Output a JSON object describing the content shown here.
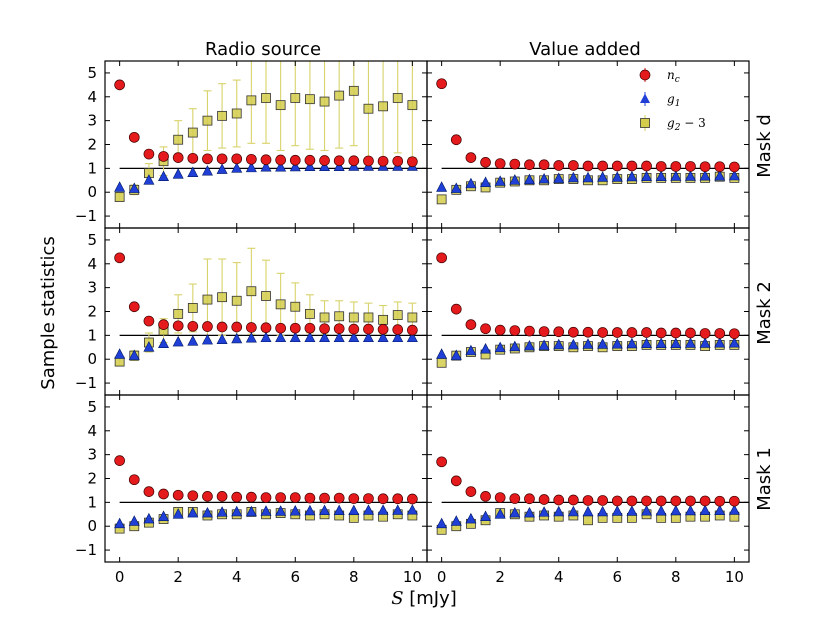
{
  "figure": {
    "ylabel": "Sample statistics",
    "xlabel_symbol": "S",
    "xlabel_unit": " [mJy]"
  },
  "colors": {
    "n_c": "#e41a1c",
    "g1": "#1f3fd6",
    "g2m3_fill": "#d4cd4c",
    "g2m3_err": "#d8d36a",
    "nc_err": "#e41a1c",
    "g1_err": "#1f3fd6",
    "reference_line": "#000000"
  },
  "chart_data": {
    "type": "scatter",
    "grid": false,
    "columns": [
      "Radio source",
      "Value added"
    ],
    "rows": [
      "Mask d",
      "Mask 2",
      "Mask 1"
    ],
    "x": [
      0,
      0.5,
      1,
      1.5,
      2,
      2.5,
      3,
      3.5,
      4,
      4.5,
      5,
      5.5,
      6,
      6.5,
      7,
      7.5,
      8,
      8.5,
      9,
      9.5,
      10
    ],
    "xlim": [
      -0.5,
      10.5
    ],
    "ylim": [
      -1.5,
      5.5
    ],
    "xticks": [
      0,
      2,
      4,
      6,
      8,
      10
    ],
    "yticks": [
      -1,
      0,
      1,
      2,
      3,
      4,
      5
    ],
    "reference_line": {
      "y": 1,
      "x_start": 0
    },
    "legend": {
      "position": "top-right",
      "panel": [
        0,
        1
      ],
      "entries": [
        {
          "key": "n_c",
          "base": "n",
          "sub": "c",
          "suffix": ""
        },
        {
          "key": "g1",
          "base": "g",
          "sub": "1",
          "suffix": ""
        },
        {
          "key": "g2m3",
          "base": "g",
          "sub": "2",
          "suffix": " − 3"
        }
      ]
    },
    "panels": [
      {
        "row": 0,
        "col": 0,
        "series": {
          "n_c": [
            4.5,
            2.3,
            1.6,
            1.5,
            1.45,
            1.42,
            1.4,
            1.4,
            1.4,
            1.38,
            1.36,
            1.35,
            1.34,
            1.34,
            1.33,
            1.32,
            1.32,
            1.31,
            1.3,
            1.3,
            1.28
          ],
          "g1": [
            0.2,
            0.15,
            0.5,
            0.65,
            0.75,
            0.82,
            0.88,
            0.95,
            1.0,
            1.02,
            1.05,
            1.05,
            1.06,
            1.07,
            1.07,
            1.07,
            1.08,
            1.08,
            1.08,
            1.08,
            1.08
          ],
          "g2m3": [
            -0.2,
            0.1,
            0.8,
            1.3,
            2.2,
            2.5,
            3.0,
            3.2,
            3.3,
            3.85,
            3.95,
            3.65,
            3.95,
            3.9,
            3.8,
            4.05,
            4.25,
            3.5,
            3.6,
            3.95,
            3.65
          ],
          "g2m3_err": [
            0.15,
            0.2,
            0.4,
            0.6,
            0.8,
            1.0,
            1.25,
            1.35,
            1.4,
            1.8,
            1.9,
            1.9,
            2.0,
            2.1,
            2.05,
            2.2,
            2.3,
            2.1,
            2.15,
            2.3,
            2.2
          ]
        }
      },
      {
        "row": 0,
        "col": 1,
        "series": {
          "n_c": [
            4.55,
            2.2,
            1.45,
            1.25,
            1.2,
            1.18,
            1.15,
            1.15,
            1.12,
            1.12,
            1.1,
            1.1,
            1.1,
            1.1,
            1.1,
            1.08,
            1.08,
            1.08,
            1.07,
            1.07,
            1.06
          ],
          "g1": [
            0.2,
            0.15,
            0.35,
            0.4,
            0.45,
            0.5,
            0.52,
            0.55,
            0.57,
            0.6,
            0.6,
            0.62,
            0.62,
            0.64,
            0.65,
            0.65,
            0.66,
            0.66,
            0.67,
            0.67,
            0.68
          ],
          "g2m3": [
            -0.3,
            0.1,
            0.25,
            0.2,
            0.4,
            0.45,
            0.5,
            0.5,
            0.55,
            0.55,
            0.5,
            0.5,
            0.55,
            0.55,
            0.6,
            0.6,
            0.6,
            0.6,
            0.6,
            0.65,
            0.6
          ],
          "g2m3_err": [
            0.05,
            0.05,
            0.06,
            0.06,
            0.07,
            0.07,
            0.08,
            0.08,
            0.08,
            0.08,
            0.08,
            0.08,
            0.08,
            0.08,
            0.08,
            0.08,
            0.08,
            0.08,
            0.08,
            0.08,
            0.08
          ]
        }
      },
      {
        "row": 1,
        "col": 0,
        "series": {
          "n_c": [
            4.25,
            2.2,
            1.6,
            1.45,
            1.4,
            1.38,
            1.37,
            1.35,
            1.35,
            1.33,
            1.32,
            1.3,
            1.3,
            1.3,
            1.28,
            1.28,
            1.26,
            1.26,
            1.25,
            1.24,
            1.22
          ],
          "g1": [
            0.2,
            0.15,
            0.5,
            0.65,
            0.72,
            0.75,
            0.8,
            0.82,
            0.85,
            0.88,
            0.9,
            0.9,
            0.9,
            0.9,
            0.9,
            0.9,
            0.9,
            0.9,
            0.9,
            0.9,
            0.9
          ],
          "g2m3": [
            -0.1,
            0.15,
            0.7,
            1.2,
            1.9,
            2.15,
            2.5,
            2.6,
            2.45,
            2.85,
            2.65,
            2.3,
            2.2,
            1.9,
            1.75,
            1.8,
            1.75,
            1.75,
            1.65,
            1.85,
            1.75
          ],
          "g2m3_err": [
            0.15,
            0.2,
            0.4,
            0.5,
            0.8,
            1.0,
            1.7,
            1.6,
            1.6,
            1.8,
            1.5,
            1.3,
            1.0,
            0.8,
            0.7,
            0.65,
            0.65,
            0.6,
            0.6,
            0.55,
            0.6
          ]
        }
      },
      {
        "row": 1,
        "col": 1,
        "series": {
          "n_c": [
            4.25,
            2.1,
            1.45,
            1.28,
            1.22,
            1.2,
            1.18,
            1.16,
            1.15,
            1.13,
            1.13,
            1.12,
            1.12,
            1.12,
            1.12,
            1.1,
            1.1,
            1.1,
            1.08,
            1.08,
            1.07
          ],
          "g1": [
            0.2,
            0.15,
            0.35,
            0.42,
            0.48,
            0.52,
            0.55,
            0.57,
            0.6,
            0.6,
            0.62,
            0.62,
            0.63,
            0.64,
            0.65,
            0.65,
            0.65,
            0.66,
            0.66,
            0.67,
            0.67
          ],
          "g2m3": [
            -0.15,
            0.15,
            0.3,
            0.2,
            0.4,
            0.45,
            0.5,
            0.55,
            0.55,
            0.5,
            0.55,
            0.5,
            0.55,
            0.55,
            0.6,
            0.6,
            0.6,
            0.6,
            0.55,
            0.6,
            0.6
          ],
          "g2m3_err": [
            0.05,
            0.05,
            0.06,
            0.06,
            0.07,
            0.07,
            0.08,
            0.08,
            0.08,
            0.08,
            0.08,
            0.08,
            0.08,
            0.08,
            0.08,
            0.08,
            0.08,
            0.08,
            0.08,
            0.08,
            0.08
          ]
        }
      },
      {
        "row": 2,
        "col": 0,
        "series": {
          "n_c": [
            2.75,
            1.95,
            1.45,
            1.35,
            1.3,
            1.28,
            1.25,
            1.25,
            1.22,
            1.22,
            1.2,
            1.2,
            1.2,
            1.18,
            1.18,
            1.18,
            1.16,
            1.16,
            1.15,
            1.15,
            1.14
          ],
          "g1": [
            0.1,
            0.2,
            0.3,
            0.4,
            0.5,
            0.55,
            0.55,
            0.58,
            0.6,
            0.6,
            0.62,
            0.62,
            0.63,
            0.64,
            0.65,
            0.65,
            0.65,
            0.66,
            0.66,
            0.66,
            0.67
          ],
          "g2m3": [
            -0.1,
            0.0,
            0.15,
            0.3,
            0.6,
            0.6,
            0.45,
            0.5,
            0.5,
            0.6,
            0.5,
            0.55,
            0.5,
            0.45,
            0.5,
            0.45,
            0.35,
            0.45,
            0.4,
            0.5,
            0.45
          ],
          "g2m3_err": [
            0.08,
            0.08,
            0.1,
            0.1,
            0.1,
            0.1,
            0.1,
            0.1,
            0.1,
            0.1,
            0.1,
            0.1,
            0.1,
            0.1,
            0.1,
            0.1,
            0.1,
            0.1,
            0.1,
            0.1,
            0.1
          ]
        }
      },
      {
        "row": 2,
        "col": 1,
        "series": {
          "n_c": [
            2.7,
            1.9,
            1.45,
            1.25,
            1.2,
            1.16,
            1.15,
            1.12,
            1.1,
            1.1,
            1.08,
            1.08,
            1.06,
            1.06,
            1.06,
            1.06,
            1.06,
            1.06,
            1.06,
            1.05,
            1.05
          ],
          "g1": [
            0.1,
            0.2,
            0.3,
            0.4,
            0.5,
            0.55,
            0.55,
            0.58,
            0.6,
            0.6,
            0.6,
            0.6,
            0.62,
            0.62,
            0.63,
            0.63,
            0.64,
            0.64,
            0.65,
            0.65,
            0.66
          ],
          "g2m3": [
            -0.15,
            0.0,
            0.1,
            0.25,
            0.55,
            0.5,
            0.4,
            0.45,
            0.4,
            0.45,
            0.25,
            0.35,
            0.35,
            0.35,
            0.5,
            0.35,
            0.35,
            0.4,
            0.4,
            0.45,
            0.4
          ],
          "g2m3_err": [
            0.08,
            0.08,
            0.1,
            0.1,
            0.1,
            0.1,
            0.1,
            0.1,
            0.1,
            0.1,
            0.1,
            0.1,
            0.1,
            0.1,
            0.1,
            0.1,
            0.1,
            0.1,
            0.1,
            0.1,
            0.1
          ]
        }
      }
    ]
  }
}
